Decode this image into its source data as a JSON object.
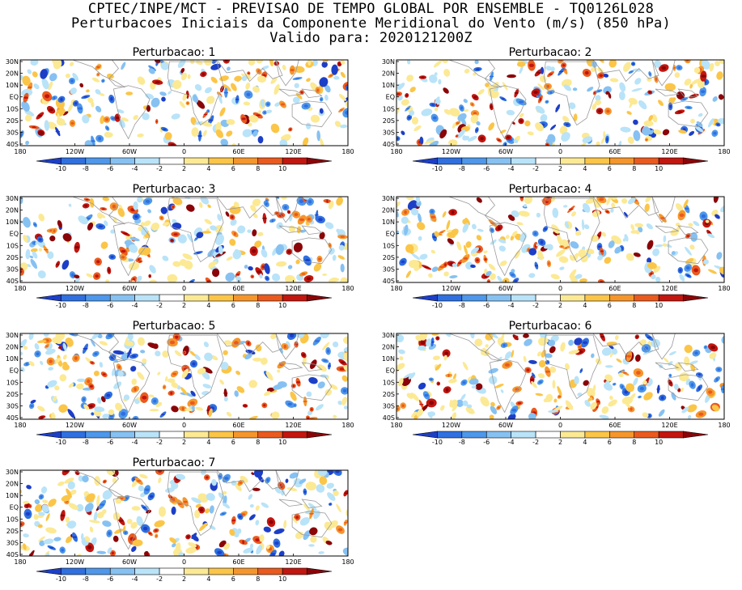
{
  "header": {
    "line1": "CPTEC/INPE/MCT - PREVISAO DE TEMPO GLOBAL POR ENSEMBLE - TQ0126L028",
    "line2": "Perturbacoes Iniciais da Componente Meridional do Vento (m/s) (850 hPa)",
    "line3": "Valido para: 2020121200Z"
  },
  "panels": [
    {
      "title": "Perturbacao: 1"
    },
    {
      "title": "Perturbacao: 2"
    },
    {
      "title": "Perturbacao: 3"
    },
    {
      "title": "Perturbacao: 4"
    },
    {
      "title": "Perturbacao: 5"
    },
    {
      "title": "Perturbacao: 6"
    },
    {
      "title": "Perturbacao: 7"
    }
  ],
  "axes": {
    "y_labels": [
      "30N",
      "20N",
      "10N",
      "EQ",
      "10S",
      "20S",
      "30S",
      "40S"
    ],
    "x_labels": [
      "180",
      "120W",
      "60W",
      "0",
      "60E",
      "120E",
      "180"
    ]
  },
  "colorbar": {
    "labels": [
      "-10",
      "-8",
      "-6",
      "-4",
      "-2",
      "2",
      "4",
      "6",
      "8",
      "10"
    ],
    "colors": [
      "#1d3fc7",
      "#2f6fe0",
      "#4e97ea",
      "#86c1f2",
      "#b9e3f8",
      "#ffffff",
      "#fce994",
      "#fbc548",
      "#f5962c",
      "#ea5a1e",
      "#c2160f",
      "#8a0508"
    ]
  }
}
